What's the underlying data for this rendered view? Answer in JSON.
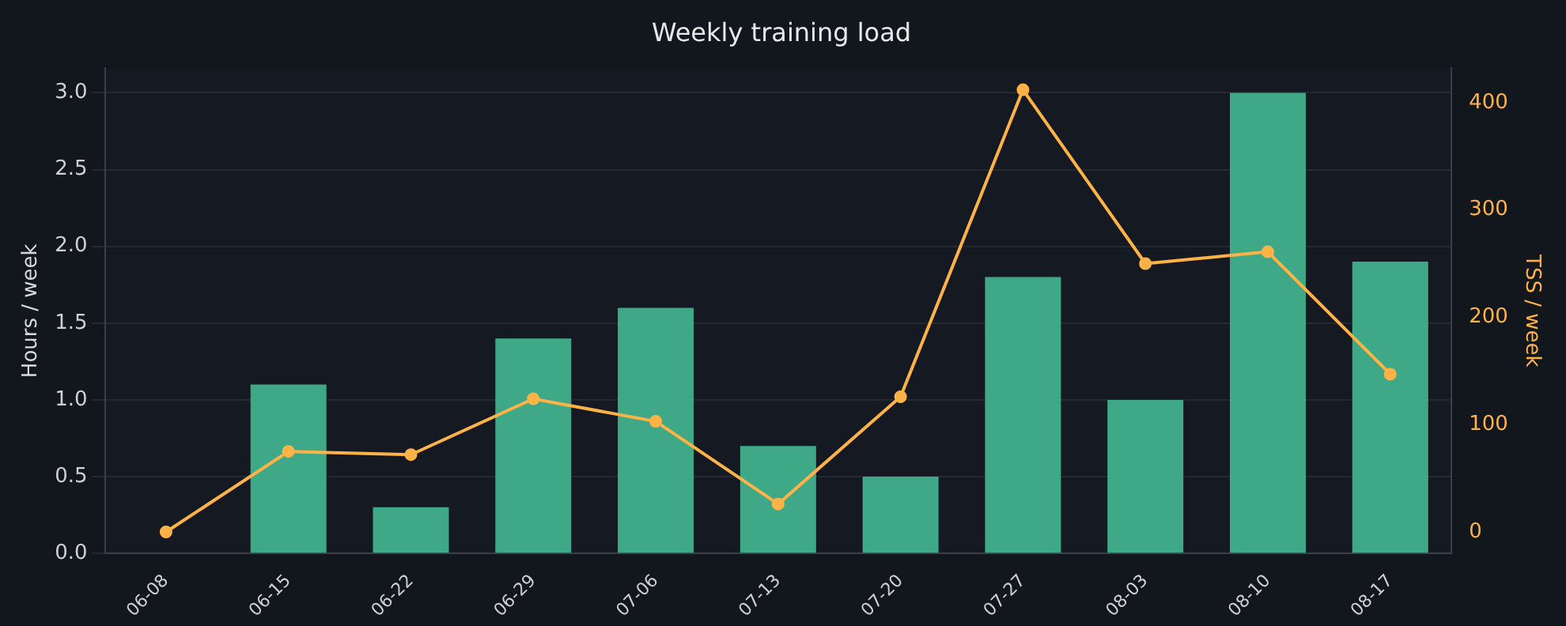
{
  "chart_data": {
    "type": "bar",
    "title": "Weekly training load",
    "ylabel": "Hours / week",
    "y2label": "TSS / week",
    "categories": [
      "06-08",
      "06-15",
      "06-22",
      "06-29",
      "07-06",
      "07-13",
      "07-20",
      "07-27",
      "08-03",
      "08-10",
      "08-17"
    ],
    "series": [
      {
        "color": "#42b48e",
        "values": [
          0,
          1.1,
          0.3,
          1.4,
          1.6,
          0.7,
          0.5,
          1.8,
          1.0,
          3.0,
          1.9
        ]
      },
      {
        "type": "line",
        "axis": "y2",
        "color": "#ffb347",
        "values": [
          0,
          75,
          72,
          124,
          103,
          26,
          126,
          412,
          250,
          261,
          147
        ]
      }
    ],
    "ylim": [
      0,
      3.16
    ],
    "yticks": [
      {
        "value": 0,
        "label": "0.0"
      },
      0.5,
      {
        "value": 1,
        "label": "1.0"
      },
      1.5,
      {
        "value": 2,
        "label": "2.0"
      },
      2.5,
      {
        "value": 3,
        "label": "3.0"
      }
    ],
    "y2lim": [
      -20,
      432
    ],
    "y2ticks": [
      0,
      100,
      200,
      300,
      400
    ],
    "grid": "y",
    "legend": false,
    "marker": "circle",
    "line_style": "solid"
  }
}
